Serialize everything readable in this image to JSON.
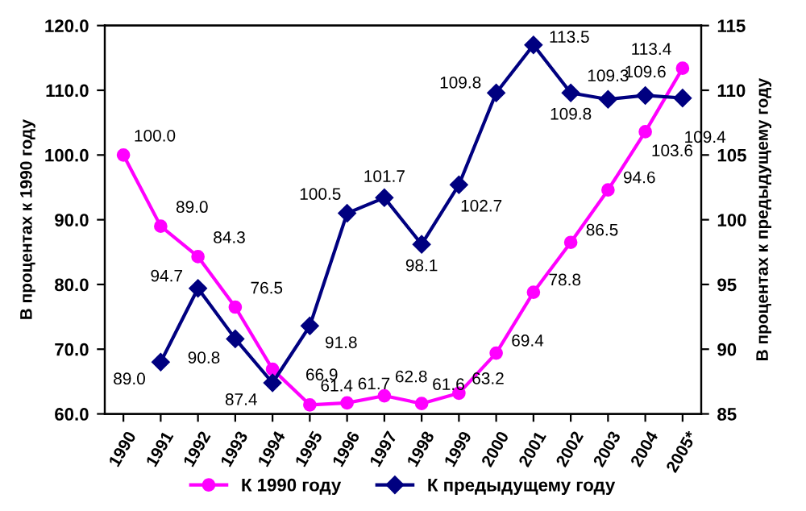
{
  "chart_data": {
    "type": "line",
    "ylabel": "В процентах к 1990 году",
    "y2label": "В процентах к предыдущему году",
    "categories": [
      "1990",
      "1991",
      "1992",
      "1993",
      "1994",
      "1995",
      "1996",
      "1997",
      "1998",
      "1999",
      "2000",
      "2001",
      "2002",
      "2003",
      "2004",
      "2005*"
    ],
    "series": [
      {
        "name": "К 1990 году",
        "color": "#ff00ff",
        "marker": "circle",
        "values": [
          100.0,
          89.0,
          84.3,
          76.5,
          66.9,
          61.4,
          61.7,
          62.8,
          61.6,
          63.2,
          69.4,
          78.8,
          86.5,
          94.6,
          103.6,
          113.4
        ],
        "value_labels": [
          "100.0",
          "89.0",
          "84.3",
          "76.5",
          "66.9",
          "61.4",
          "61.7",
          "62.8",
          "61.6",
          "63.2",
          "69.4",
          "78.8",
          "86.5",
          "94.6",
          "103.6",
          "113.4"
        ]
      },
      {
        "name": "К предыдущему году",
        "color": "#000080",
        "marker": "diamond",
        "axis": "y2",
        "values": [
          null,
          89.0,
          94.7,
          90.8,
          87.4,
          91.8,
          100.5,
          101.7,
          98.1,
          102.7,
          109.8,
          113.5,
          109.8,
          109.3,
          109.6,
          109.4
        ],
        "value_labels": [
          null,
          "89.0",
          "94.7",
          "90.8",
          "87.4",
          "91.8",
          "100.5",
          "101.7",
          "98.1",
          "102.7",
          "109.8",
          "113.5",
          "109.8",
          "109.3",
          "109.6",
          "109.4"
        ]
      }
    ],
    "ylim": [
      60,
      120
    ],
    "yticks": [
      {
        "value": 60,
        "label": "60.0"
      },
      {
        "value": 70,
        "label": "70.0"
      },
      {
        "value": 80,
        "label": "80.0"
      },
      {
        "value": 90,
        "label": "90.0"
      },
      {
        "value": 100,
        "label": "100.0"
      },
      {
        "value": 110,
        "label": "110.0"
      },
      {
        "value": 120,
        "label": "120.0"
      }
    ],
    "y2lim": [
      85,
      115
    ],
    "y2ticks": [
      85,
      90,
      95,
      100,
      105,
      110,
      115
    ],
    "legend": "bottom",
    "grid": false
  }
}
